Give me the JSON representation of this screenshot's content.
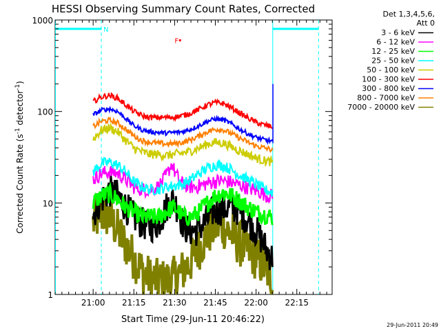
{
  "chart_data": {
    "type": "line",
    "title": "HESSI Observing Summary Count Rates, Corrected",
    "xlabel": "Start Time (29-Jun-11 20:46:22)",
    "ylabel_main": "Corrected Count Rate (s",
    "ylabel_sup1": "-1",
    "ylabel_mid": " detector",
    "ylabel_sup2": "-1",
    "ylabel_end": ")",
    "x_range_minutes": [
      0,
      102
    ],
    "x_ticks": [
      {
        "m": 14,
        "label": "21:00"
      },
      {
        "m": 29,
        "label": "21:15"
      },
      {
        "m": 44,
        "label": "21:30"
      },
      {
        "m": 59,
        "label": "21:45"
      },
      {
        "m": 74,
        "label": "22:00"
      },
      {
        "m": 89,
        "label": "22:15"
      }
    ],
    "y_scale": "log",
    "y_range": [
      1,
      1000
    ],
    "y_ticks": [
      {
        "v": 1,
        "label": "1"
      },
      {
        "v": 10,
        "label": "10"
      },
      {
        "v": 100,
        "label": "100"
      },
      {
        "v": 1000,
        "label": "1000"
      }
    ],
    "legend_header": [
      "Det 1,3,4,5,6,",
      "Att 0"
    ],
    "series": [
      {
        "name": "3 - 6 keV",
        "color": "#000000",
        "width": 3,
        "noise": 0.18,
        "points": [
          [
            14,
            7.5
          ],
          [
            17,
            11
          ],
          [
            20,
            13.5
          ],
          [
            23,
            12
          ],
          [
            26,
            9
          ],
          [
            29,
            7
          ],
          [
            32,
            6
          ],
          [
            35,
            5.5
          ],
          [
            38,
            6
          ],
          [
            41,
            9
          ],
          [
            43,
            11
          ],
          [
            45,
            9
          ],
          [
            47,
            6
          ],
          [
            49,
            5
          ],
          [
            52,
            5
          ],
          [
            55,
            6
          ],
          [
            58,
            8
          ],
          [
            61,
            8.5
          ],
          [
            64,
            9
          ],
          [
            67,
            8.5
          ],
          [
            70,
            7
          ],
          [
            73,
            5.5
          ],
          [
            76,
            4
          ],
          [
            78,
            3
          ],
          [
            80,
            2.5
          ]
        ]
      },
      {
        "name": "6 - 12 keV",
        "color": "#ff00ff",
        "width": 2,
        "noise": 0.08,
        "points": [
          [
            14,
            18
          ],
          [
            17,
            21
          ],
          [
            20,
            22
          ],
          [
            23,
            21
          ],
          [
            26,
            18
          ],
          [
            29,
            15
          ],
          [
            32,
            14
          ],
          [
            35,
            14
          ],
          [
            38,
            15
          ],
          [
            41,
            20
          ],
          [
            43,
            27
          ],
          [
            44,
            22
          ],
          [
            46,
            17
          ],
          [
            49,
            15
          ],
          [
            52,
            15
          ],
          [
            55,
            16
          ],
          [
            58,
            17
          ],
          [
            61,
            17.5
          ],
          [
            64,
            17
          ],
          [
            67,
            16
          ],
          [
            70,
            15
          ],
          [
            73,
            14
          ],
          [
            76,
            13
          ],
          [
            78,
            12
          ],
          [
            80,
            12
          ]
        ]
      },
      {
        "name": "12 - 25 keV",
        "color": "#00ff00",
        "width": 3,
        "noise": 0.1,
        "points": [
          [
            14,
            10
          ],
          [
            17,
            12
          ],
          [
            20,
            12.5
          ],
          [
            23,
            11
          ],
          [
            26,
            9
          ],
          [
            29,
            8
          ],
          [
            32,
            7
          ],
          [
            35,
            7
          ],
          [
            38,
            7
          ],
          [
            41,
            8
          ],
          [
            43,
            9
          ],
          [
            45,
            8.5
          ],
          [
            47,
            7
          ],
          [
            50,
            7
          ],
          [
            53,
            8
          ],
          [
            56,
            10
          ],
          [
            59,
            12
          ],
          [
            62,
            13
          ],
          [
            65,
            12
          ],
          [
            68,
            10.5
          ],
          [
            71,
            9
          ],
          [
            74,
            8
          ],
          [
            77,
            7.5
          ],
          [
            80,
            7
          ]
        ]
      },
      {
        "name": "25 - 50 keV",
        "color": "#00ffff",
        "width": 2,
        "noise": 0.06,
        "points": [
          [
            14,
            22
          ],
          [
            17,
            27
          ],
          [
            20,
            28
          ],
          [
            23,
            26
          ],
          [
            26,
            22
          ],
          [
            29,
            17
          ],
          [
            32,
            15
          ],
          [
            35,
            14
          ],
          [
            38,
            14
          ],
          [
            41,
            15
          ],
          [
            44,
            15.5
          ],
          [
            47,
            16
          ],
          [
            50,
            18
          ],
          [
            53,
            21
          ],
          [
            56,
            24
          ],
          [
            59,
            26
          ],
          [
            62,
            25.5
          ],
          [
            65,
            23
          ],
          [
            68,
            20
          ],
          [
            71,
            18
          ],
          [
            74,
            16
          ],
          [
            77,
            14
          ],
          [
            80,
            13
          ]
        ]
      },
      {
        "name": "50 - 100 keV",
        "color": "#cccc00",
        "width": 2,
        "noise": 0.05,
        "points": [
          [
            14,
            50
          ],
          [
            17,
            62
          ],
          [
            20,
            66
          ],
          [
            23,
            60
          ],
          [
            26,
            48
          ],
          [
            29,
            40
          ],
          [
            32,
            36
          ],
          [
            35,
            34
          ],
          [
            38,
            34
          ],
          [
            41,
            33
          ],
          [
            44,
            34
          ],
          [
            47,
            35
          ],
          [
            50,
            37
          ],
          [
            53,
            40
          ],
          [
            56,
            44
          ],
          [
            59,
            46
          ],
          [
            62,
            45
          ],
          [
            65,
            41
          ],
          [
            68,
            37
          ],
          [
            71,
            34
          ],
          [
            74,
            31
          ],
          [
            77,
            29
          ],
          [
            80,
            28
          ]
        ]
      },
      {
        "name": "100 - 300 keV",
        "color": "#ff0000",
        "width": 2,
        "noise": 0.03,
        "points": [
          [
            14,
            128
          ],
          [
            17,
            144
          ],
          [
            20,
            150
          ],
          [
            23,
            140
          ],
          [
            26,
            118
          ],
          [
            29,
            100
          ],
          [
            32,
            90
          ],
          [
            35,
            86
          ],
          [
            38,
            86
          ],
          [
            41,
            86
          ],
          [
            44,
            87
          ],
          [
            47,
            90
          ],
          [
            50,
            96
          ],
          [
            53,
            106
          ],
          [
            56,
            118
          ],
          [
            59,
            125
          ],
          [
            62,
            122
          ],
          [
            65,
            110
          ],
          [
            68,
            96
          ],
          [
            71,
            85
          ],
          [
            74,
            76
          ],
          [
            77,
            71
          ],
          [
            80,
            68
          ]
        ]
      },
      {
        "name": "300 - 800 keV",
        "color": "#ff00ff",
        "width": 2,
        "noise": 0.02,
        "points": []
      },
      {
        "name": "800 - 7000 keV",
        "color": "#ff8000",
        "width": 2,
        "noise": 0.03,
        "points": [
          [
            14,
            68
          ],
          [
            17,
            78
          ],
          [
            20,
            80
          ],
          [
            23,
            75
          ],
          [
            26,
            64
          ],
          [
            29,
            54
          ],
          [
            32,
            48
          ],
          [
            35,
            46
          ],
          [
            38,
            45
          ],
          [
            41,
            44
          ],
          [
            44,
            44.5
          ],
          [
            47,
            46
          ],
          [
            50,
            49
          ],
          [
            53,
            54
          ],
          [
            56,
            60
          ],
          [
            59,
            64
          ],
          [
            62,
            63
          ],
          [
            65,
            57
          ],
          [
            68,
            51
          ],
          [
            71,
            46
          ],
          [
            74,
            42
          ],
          [
            77,
            40
          ],
          [
            80,
            38
          ]
        ]
      },
      {
        "name": "7000 - 20000 keV",
        "color": "#808000",
        "width": 4,
        "noise": 0.25,
        "points": [
          [
            14,
            6
          ],
          [
            17,
            7.5
          ],
          [
            20,
            7
          ],
          [
            23,
            5
          ],
          [
            26,
            3.5
          ],
          [
            29,
            2.5
          ],
          [
            32,
            1.8
          ],
          [
            35,
            1.5
          ],
          [
            38,
            1.4
          ],
          [
            41,
            1.4
          ],
          [
            44,
            1.5
          ],
          [
            47,
            1.8
          ],
          [
            50,
            2.3
          ],
          [
            53,
            3.2
          ],
          [
            56,
            4.5
          ],
          [
            59,
            5.5
          ],
          [
            62,
            5.5
          ],
          [
            65,
            4.5
          ],
          [
            68,
            3.5
          ],
          [
            71,
            3
          ],
          [
            74,
            2.5
          ],
          [
            77,
            2
          ],
          [
            80,
            1.5
          ]
        ]
      }
    ],
    "legend_colors_override": {
      "6 - 12 keV": "#ff00ff",
      "12 - 25 keV": "#00ff00",
      "25 - 50 keV": "#00ffff",
      "50 - 100 keV": "#cccc00",
      "100 - 300 keV": "#ff0000",
      "300 - 800 keV": "#0000ff",
      "800 - 7000 keV": "#ff8000",
      "7000 - 20000 keV": "#808000"
    },
    "blue_curve": {
      "name": "300 - 800 keV",
      "color": "#0000ff",
      "width": 2,
      "noise": 0.025,
      "points": [
        [
          14,
          92
        ],
        [
          17,
          103
        ],
        [
          20,
          107
        ],
        [
          23,
          100
        ],
        [
          26,
          84
        ],
        [
          29,
          70
        ],
        [
          32,
          63
        ],
        [
          35,
          60
        ],
        [
          38,
          59
        ],
        [
          41,
          58
        ],
        [
          44,
          59
        ],
        [
          47,
          60
        ],
        [
          50,
          64
        ],
        [
          53,
          70
        ],
        [
          56,
          78
        ],
        [
          59,
          83
        ],
        [
          62,
          81
        ],
        [
          65,
          73
        ],
        [
          68,
          64
        ],
        [
          71,
          57
        ],
        [
          74,
          52
        ],
        [
          77,
          49
        ],
        [
          80,
          47
        ]
      ]
    },
    "spike": {
      "m": 80.2,
      "value": 200,
      "color": "#0000ff"
    },
    "data_start_minute": 13.5,
    "data_end_minute": 80,
    "cyan_bars": [
      [
        0,
        17
      ],
      [
        80,
        97
      ]
    ],
    "cyan_bar_level": 800,
    "cyan_vlines_solid": [
      0,
      80
    ],
    "cyan_vlines_dashed": [
      17,
      97
    ],
    "markers": [
      {
        "label": "N",
        "m": 17.8,
        "v": 800,
        "color": "#00ffff"
      },
      {
        "label": "F",
        "m": 44,
        "v": 600,
        "color": "#ff0000"
      }
    ],
    "flare_dot": {
      "m": 46,
      "v": 600,
      "color": "#ff0000"
    },
    "timestamp": "29-Jun-2011 20:49"
  }
}
